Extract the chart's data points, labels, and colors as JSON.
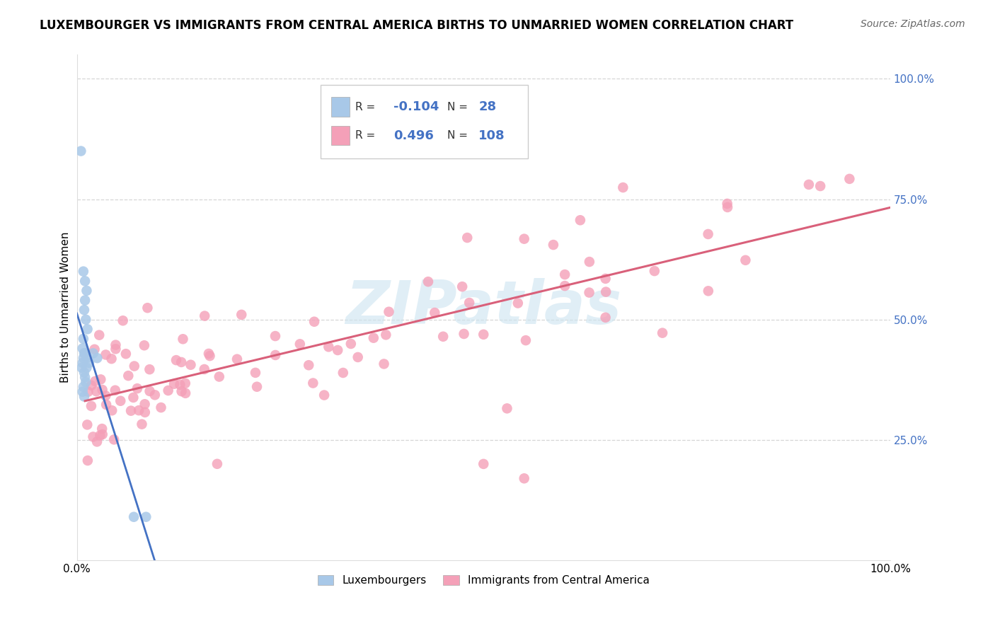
{
  "title": "LUXEMBOURGER VS IMMIGRANTS FROM CENTRAL AMERICA BIRTHS TO UNMARRIED WOMEN CORRELATION CHART",
  "source": "Source: ZipAtlas.com",
  "ylabel": "Births to Unmarried Women",
  "xlim": [
    0.0,
    1.0
  ],
  "ylim": [
    0.0,
    1.05
  ],
  "yticks": [
    0.25,
    0.5,
    0.75,
    1.0
  ],
  "ytick_labels": [
    "25.0%",
    "50.0%",
    "75.0%",
    "100.0%"
  ],
  "legend_labels": [
    "Luxembourgers",
    "Immigrants from Central America"
  ],
  "blue_R": -0.104,
  "blue_N": 28,
  "pink_R": 0.496,
  "pink_N": 108,
  "blue_color": "#a8c8e8",
  "pink_color": "#f4a0b8",
  "blue_line_color": "#4472c4",
  "pink_line_color": "#d9607a",
  "dashed_color": "#b0c8e0",
  "grid_color": "#cccccc",
  "watermark_color": "#cce4f0",
  "watermark_alpha": 0.6,
  "title_fontsize": 12,
  "source_fontsize": 10,
  "tick_fontsize": 11,
  "ylabel_fontsize": 11
}
